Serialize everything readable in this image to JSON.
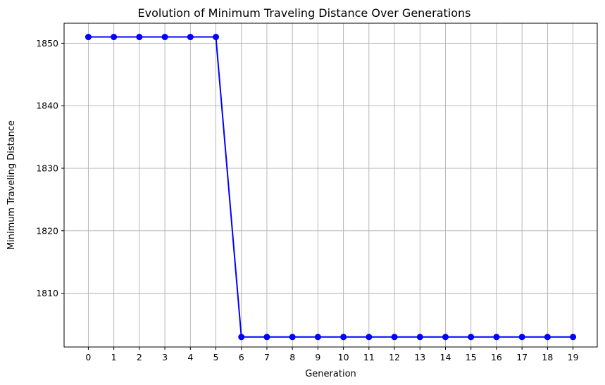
{
  "chart_data": {
    "type": "line",
    "title": "Evolution of Minimum Traveling Distance Over Generations",
    "xlabel": "Generation",
    "ylabel": "Minimum Traveling Distance",
    "x": [
      0,
      1,
      2,
      3,
      4,
      5,
      6,
      7,
      8,
      9,
      10,
      11,
      12,
      13,
      14,
      15,
      16,
      17,
      18,
      19
    ],
    "series": [
      {
        "values": [
          1851,
          1851,
          1851,
          1851,
          1851,
          1851,
          1803,
          1803,
          1803,
          1803,
          1803,
          1803,
          1803,
          1803,
          1803,
          1803,
          1803,
          1803,
          1803,
          1803
        ],
        "color": "#0000ff",
        "marker": "circle"
      }
    ],
    "xlim": [
      -0.95,
      19.95
    ],
    "ylim": [
      1801.4,
      1853.2
    ],
    "xticks": [
      0,
      1,
      2,
      3,
      4,
      5,
      6,
      7,
      8,
      9,
      10,
      11,
      12,
      13,
      14,
      15,
      16,
      17,
      18,
      19
    ],
    "yticks": [
      1810,
      1820,
      1830,
      1840,
      1850
    ],
    "grid": true,
    "colors": {
      "grid": "#b0b0b0",
      "axis": "#000000"
    }
  }
}
